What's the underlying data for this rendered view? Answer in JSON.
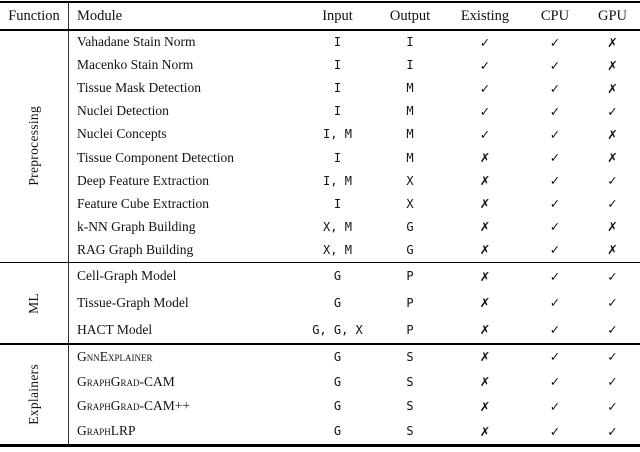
{
  "header": {
    "function": "Function",
    "module": "Module",
    "input": "Input",
    "output": "Output",
    "existing": "Existing",
    "cpu": "CPU",
    "gpu": "GPU"
  },
  "glyphs": {
    "check": "✓",
    "cross": "✗"
  },
  "table": {
    "sections": [
      {
        "function": "Preprocessing",
        "rows": [
          {
            "module": "Vahadane Stain Norm",
            "input": "I",
            "output": "I",
            "existing": "✓",
            "cpu": "✓",
            "gpu": "✗"
          },
          {
            "module": "Macenko Stain Norm",
            "input": "I",
            "output": "I",
            "existing": "✓",
            "cpu": "✓",
            "gpu": "✗"
          },
          {
            "module": "Tissue Mask Detection",
            "input": "I",
            "output": "M",
            "existing": "✓",
            "cpu": "✓",
            "gpu": "✗"
          },
          {
            "module": "Nuclei Detection",
            "input": "I",
            "output": "M",
            "existing": "✓",
            "cpu": "✓",
            "gpu": "✓"
          },
          {
            "module": "Nuclei Concepts",
            "input": "I, M",
            "output": "M",
            "existing": "✓",
            "cpu": "✓",
            "gpu": "✗"
          },
          {
            "module": "Tissue Component Detection",
            "input": "I",
            "output": "M",
            "existing": "✗",
            "cpu": "✓",
            "gpu": "✗"
          },
          {
            "module": "Deep Feature Extraction",
            "input": "I, M",
            "output": "X",
            "existing": "✗",
            "cpu": "✓",
            "gpu": "✓"
          },
          {
            "module": "Feature Cube Extraction",
            "input": "I",
            "output": "X",
            "existing": "✗",
            "cpu": "✓",
            "gpu": "✓"
          },
          {
            "module": "k-NN Graph Building",
            "input": "X, M",
            "output": "G",
            "existing": "✗",
            "cpu": "✓",
            "gpu": "✗"
          },
          {
            "module": "RAG Graph Building",
            "input": "X, M",
            "output": "G",
            "existing": "✗",
            "cpu": "✓",
            "gpu": "✗"
          }
        ]
      },
      {
        "function": "ML",
        "rows": [
          {
            "module": "Cell-Graph Model",
            "input": "G",
            "output": "P",
            "existing": "✗",
            "cpu": "✓",
            "gpu": "✓"
          },
          {
            "module": "Tissue-Graph Model",
            "input": "G",
            "output": "P",
            "existing": "✗",
            "cpu": "✓",
            "gpu": "✓"
          },
          {
            "module": "HACT Model",
            "input": "G, G, X",
            "output": "P",
            "existing": "✗",
            "cpu": "✓",
            "gpu": "✓"
          }
        ]
      },
      {
        "function": "Explainers",
        "rows": [
          {
            "module": "GnnExplainer",
            "input": "G",
            "output": "S",
            "existing": "✗",
            "cpu": "✓",
            "gpu": "✓"
          },
          {
            "module": "GraphGrad-CAM",
            "input": "G",
            "output": "S",
            "existing": "✗",
            "cpu": "✓",
            "gpu": "✓"
          },
          {
            "module": "GraphGrad-CAM++",
            "input": "G",
            "output": "S",
            "existing": "✗",
            "cpu": "✓",
            "gpu": "✓"
          },
          {
            "module": "GraphLRP",
            "input": "G",
            "output": "S",
            "existing": "✗",
            "cpu": "✓",
            "gpu": "✓"
          }
        ]
      }
    ]
  }
}
